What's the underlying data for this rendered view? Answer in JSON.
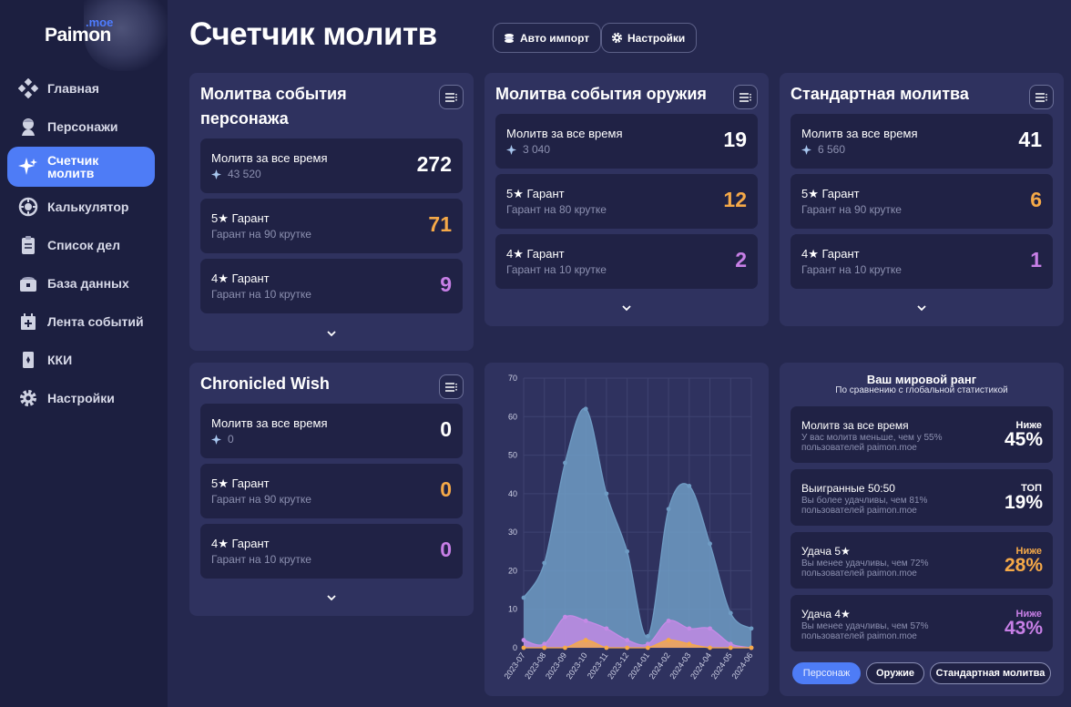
{
  "logo": {
    "brand": "Paimon",
    "suffix": ".moe"
  },
  "sidebar": {
    "items": [
      {
        "label": "Главная",
        "icon": "home-icon"
      },
      {
        "label": "Персонажи",
        "icon": "character-icon"
      },
      {
        "label": "Счетчик молитв",
        "icon": "wish-sparkle-icon",
        "active": true
      },
      {
        "label": "Калькулятор",
        "icon": "calculator-icon"
      },
      {
        "label": "Список дел",
        "icon": "todo-list-icon"
      },
      {
        "label": "База данных",
        "icon": "database-chest-icon"
      },
      {
        "label": "Лента событий",
        "icon": "timeline-icon"
      },
      {
        "label": "ККИ",
        "icon": "card-game-icon"
      },
      {
        "label": "Настройки",
        "icon": "gear-icon"
      }
    ]
  },
  "header": {
    "title": "Счетчик молитв",
    "auto_import_label": "Авто импорт",
    "settings_label": "Настройки"
  },
  "banners": {
    "character": {
      "title": "Молитва события персонажа",
      "total": {
        "label": "Молитв за все время",
        "primogems": "43 520",
        "value": "272"
      },
      "five": {
        "label": "5★ Гарант",
        "sub": "Гарант на 90 крутке",
        "value": "71"
      },
      "four": {
        "label": "4★ Гарант",
        "sub": "Гарант на 10 крутке",
        "value": "9"
      }
    },
    "weapon": {
      "title": "Молитва события оружия",
      "total": {
        "label": "Молитв за все время",
        "primogems": "3 040",
        "value": "19"
      },
      "five": {
        "label": "5★ Гарант",
        "sub": "Гарант на 80 крутке",
        "value": "12"
      },
      "four": {
        "label": "4★ Гарант",
        "sub": "Гарант на 10 крутке",
        "value": "2"
      }
    },
    "standard": {
      "title": "Стандартная молитва",
      "total": {
        "label": "Молитв за все время",
        "primogems": "6 560",
        "value": "41"
      },
      "five": {
        "label": "5★ Гарант",
        "sub": "Гарант на 90 крутке",
        "value": "6"
      },
      "four": {
        "label": "4★ Гарант",
        "sub": "Гарант на 10 крутке",
        "value": "1"
      }
    },
    "chronicled": {
      "title": "Chronicled Wish",
      "total": {
        "label": "Молитв за все время",
        "primogems": "0",
        "value": "0"
      },
      "five": {
        "label": "5★ Гарант",
        "sub": "Гарант на 90 крутке",
        "value": "0"
      },
      "four": {
        "label": "4★ Гарант",
        "sub": "Гарант на 10 крутке",
        "value": "0"
      }
    }
  },
  "chart_data": {
    "type": "area",
    "categories": [
      "2023-07",
      "2023-08",
      "2023-09",
      "2023-10",
      "2023-11",
      "2023-12",
      "2024-01",
      "2024-02",
      "2024-03",
      "2024-04",
      "2024-05",
      "2024-06"
    ],
    "x_points": [
      0,
      1,
      2,
      3,
      4,
      5,
      6,
      7,
      8,
      9,
      10,
      11
    ],
    "ylim": [
      0,
      70
    ],
    "yticks": [
      0,
      10,
      20,
      30,
      40,
      50,
      60,
      70
    ],
    "grid": true,
    "series": [
      {
        "key": "total",
        "color": "#6f9cc4",
        "values": [
          13,
          22,
          48,
          62,
          40,
          25,
          3,
          36,
          42,
          27,
          9,
          5
        ]
      },
      {
        "key": "four",
        "color": "#c58ae6",
        "values": [
          2,
          1,
          8,
          7,
          5,
          2,
          1,
          7,
          5,
          5,
          1,
          0
        ]
      },
      {
        "key": "five",
        "color": "#f5a948",
        "values": [
          0,
          0,
          0,
          2,
          0,
          0,
          0,
          2,
          1,
          0,
          0,
          0
        ]
      }
    ]
  },
  "rank": {
    "title": "Ваш мировой ранг",
    "subtitle": "По сравнению с глобальной статистикой",
    "items": [
      {
        "label": "Молитв за все время",
        "desc": "У вас молитв меньше, чем у 55% пользователей paimon.moe",
        "tag": "Ниже",
        "value": "45%",
        "color": "white"
      },
      {
        "label": "Выигранные 50:50",
        "desc": "Вы более удачливы, чем 81% пользователей paimon.moe",
        "tag": "ТОП",
        "value": "19%",
        "color": "white"
      },
      {
        "label": "Удача 5★",
        "desc": "Вы менее удачливы, чем 72% пользователей paimon.moe",
        "tag": "Ниже",
        "value": "28%",
        "color": "gold"
      },
      {
        "label": "Удача 4★",
        "desc": "Вы менее удачливы, чем 57% пользователей paimon.moe",
        "tag": "Ниже",
        "value": "43%",
        "color": "purple"
      }
    ],
    "tabs": [
      {
        "label": "Персонаж",
        "active": true
      },
      {
        "label": "Оружие",
        "active": false
      },
      {
        "label": "Стандартная молитва",
        "active": false
      }
    ]
  }
}
